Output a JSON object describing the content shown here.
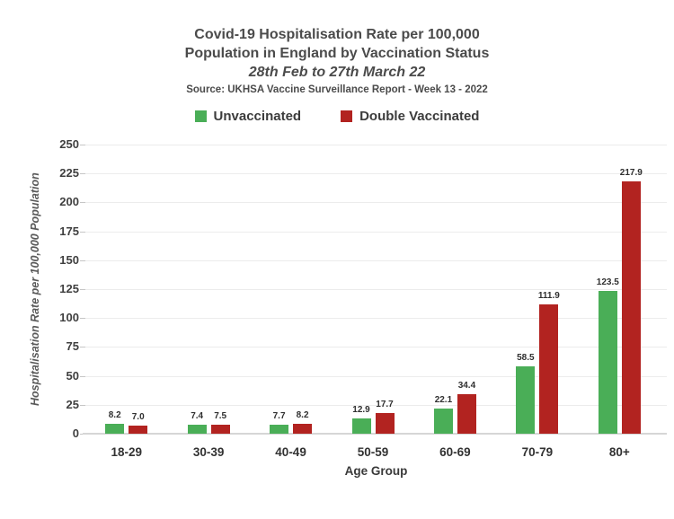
{
  "header": {
    "title_line1": "Covid-19 Hospitalisation Rate per 100,000",
    "title_line2": "Population in England by Vaccination Status",
    "subtitle": "28th Feb to 27th March 22",
    "source": "Source: UKHSA Vaccine Surveillance Report - Week 13 - 2022"
  },
  "legend": {
    "items": [
      {
        "label": "Unvaccinated",
        "color": "#4aae57"
      },
      {
        "label": "Double Vaccinated",
        "color": "#b22320"
      }
    ]
  },
  "chart_data": {
    "type": "bar",
    "title": "Covid-19 Hospitalisation Rate per 100,000 Population in England by Vaccination Status",
    "subtitle": "28th Feb to 27th March 22",
    "source": "Source: UKHSA Vaccine Surveillance Report - Week 13 - 2022",
    "categories": [
      "18-29",
      "30-39",
      "40-49",
      "50-59",
      "60-69",
      "70-79",
      "80+"
    ],
    "series": [
      {
        "name": "Unvaccinated",
        "color": "#4aae57",
        "values": [
          8.2,
          7.4,
          7.7,
          12.9,
          22.1,
          58.5,
          123.5
        ]
      },
      {
        "name": "Double Vaccinated",
        "color": "#b22320",
        "values": [
          7.0,
          7.5,
          8.2,
          17.7,
          34.4,
          111.9,
          217.9
        ]
      }
    ],
    "xlabel": "Age Group",
    "ylabel": "Hospitalisation Rate per 100,000 Population",
    "ylim": [
      0,
      250
    ],
    "yticks": [
      0,
      25,
      50,
      75,
      100,
      125,
      150,
      175,
      200,
      225,
      250
    ],
    "grid": true,
    "legend_position": "top",
    "value_labels": true,
    "value_label_decimals": 1
  }
}
